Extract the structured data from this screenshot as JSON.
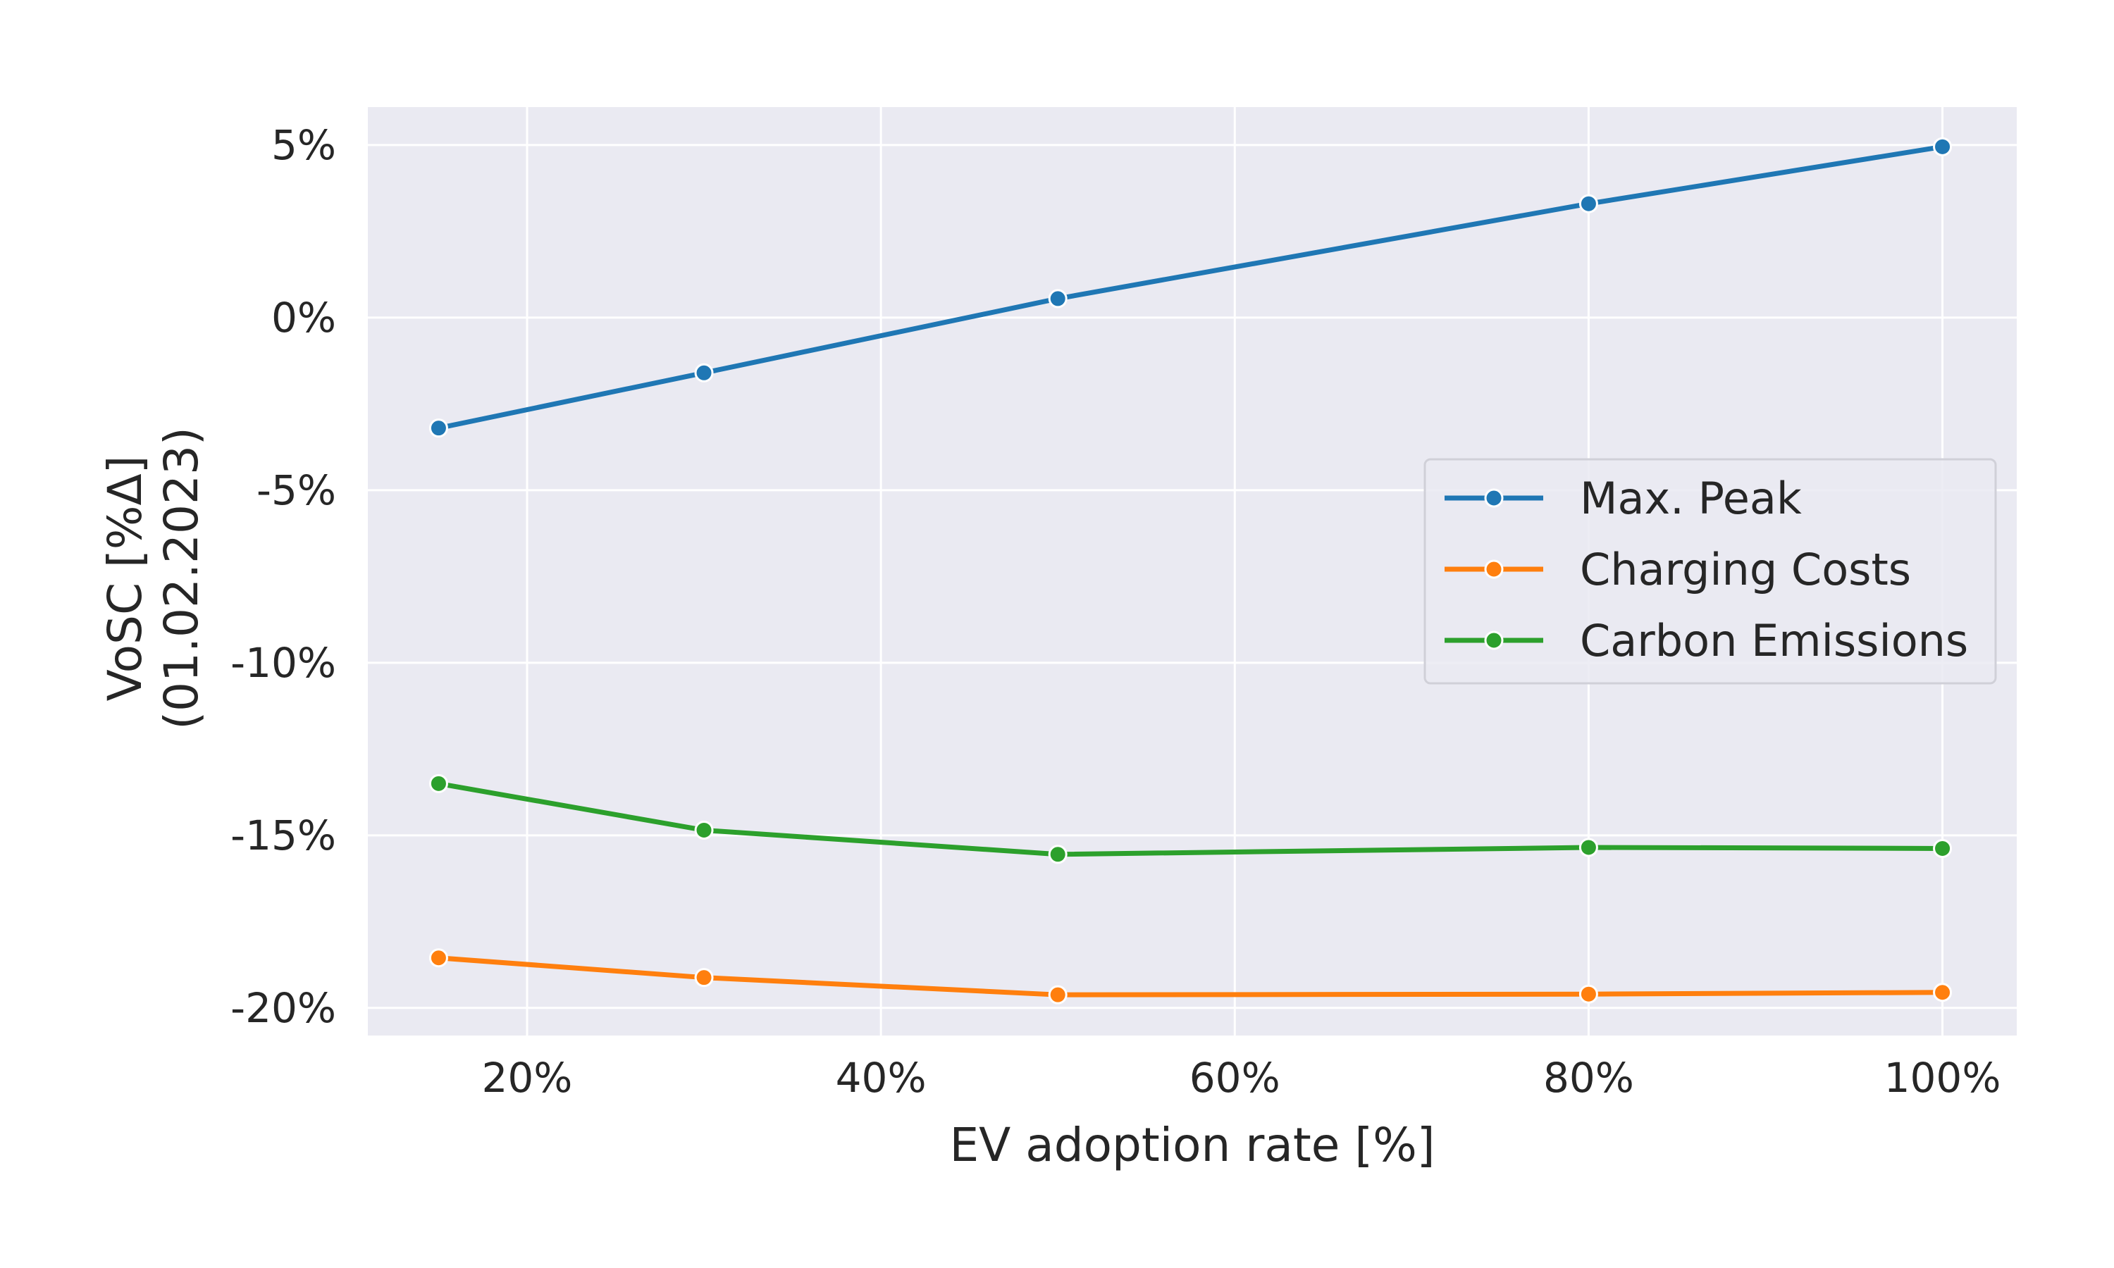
{
  "chart_data": {
    "type": "line",
    "title": "",
    "xlabel": "EV adoption rate [%]",
    "ylabel": [
      "VoSC [%Δ]",
      "(01.02.2023)"
    ],
    "x": [
      15,
      30,
      50,
      80,
      100
    ],
    "xlim": [
      11,
      104.2
    ],
    "ylim": [
      -20.8,
      6.1
    ],
    "xticks": [
      20,
      40,
      60,
      80,
      100
    ],
    "xtick_labels": [
      "20%",
      "40%",
      "60%",
      "80%",
      "100%"
    ],
    "yticks": [
      5,
      0,
      -5,
      -10,
      -15,
      -20
    ],
    "ytick_labels": [
      "5%",
      "0%",
      "-5%",
      "-10%",
      "-15%",
      "-20%"
    ],
    "grid": true,
    "legend_position": "center-right",
    "background_color": "#eaeaf2",
    "series": [
      {
        "name": "Max. Peak",
        "color": "#1f77b4",
        "values": [
          -3.2,
          -1.6,
          0.55,
          3.3,
          4.95
        ]
      },
      {
        "name": "Charging Costs",
        "color": "#ff7f0e",
        "values": [
          -18.55,
          -19.12,
          -19.62,
          -19.6,
          -19.55
        ]
      },
      {
        "name": "Carbon Emissions",
        "color": "#2ca02c",
        "values": [
          -13.5,
          -14.85,
          -15.55,
          -15.35,
          -15.38
        ]
      }
    ]
  }
}
